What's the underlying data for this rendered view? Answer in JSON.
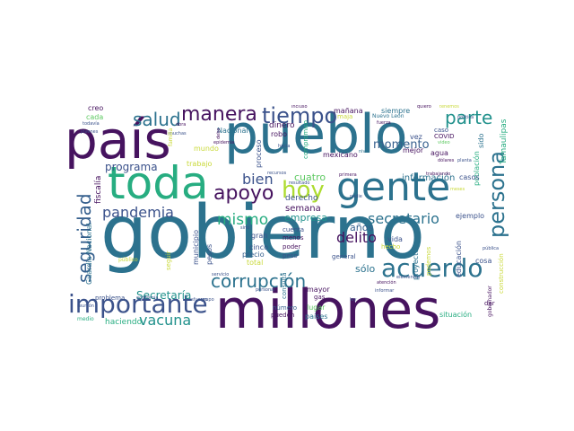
{
  "palette": {
    "background": "#ffffff",
    "dark_purple": "#46135f",
    "indigo": "#3b528b",
    "slate_blue": "#355f8d",
    "teal_blue": "#2c728e",
    "teal": "#21918c",
    "green": "#27ad81",
    "light_green": "#5ec962",
    "yellow_green": "#addc30",
    "yellow": "#c9d93a"
  },
  "words": [
    {
      "t": "gobierno",
      "c": "#2c728e"
    },
    {
      "t": "millones",
      "c": "#46135f"
    },
    {
      "t": "pueblo",
      "c": "#2c728e"
    },
    {
      "t": "país",
      "c": "#46135f"
    },
    {
      "t": "toda",
      "c": "#27ad81"
    },
    {
      "t": "gente",
      "c": "#2c728e"
    },
    {
      "t": "hoy",
      "c": "#addc30"
    },
    {
      "t": "apoyo",
      "c": "#46135f"
    },
    {
      "t": "acuerdo",
      "c": "#2c728e"
    },
    {
      "t": "importante",
      "c": "#3b528b"
    },
    {
      "t": "corrupción",
      "c": "#2c728e"
    },
    {
      "t": "tiempo",
      "c": "#3b528b"
    },
    {
      "t": "manera",
      "c": "#46135f"
    },
    {
      "t": "salud",
      "c": "#2c728e"
    },
    {
      "t": "parte",
      "c": "#21918c"
    },
    {
      "t": "persona",
      "c": "#2c728e"
    },
    {
      "t": "seguridad",
      "c": "#355f8d"
    },
    {
      "t": "pandemia",
      "c": "#3b528b"
    },
    {
      "t": "vacuna",
      "c": "#21918c"
    },
    {
      "t": "secretario",
      "c": "#2c728e"
    },
    {
      "t": "mismo",
      "c": "#27ad81"
    },
    {
      "t": "bien",
      "c": "#3b528b"
    },
    {
      "t": "delito",
      "c": "#46135f"
    },
    {
      "t": "momento",
      "c": "#355f8d"
    },
    {
      "t": "información",
      "c": "#2c728e"
    },
    {
      "t": "programa",
      "c": "#3b528b"
    },
    {
      "t": "empresa",
      "c": "#21918c"
    },
    {
      "t": "semana",
      "c": "#46135f"
    },
    {
      "t": "años",
      "c": "#355f8d"
    },
    {
      "t": "sólo",
      "c": "#2c728e"
    },
    {
      "t": "Secretaría",
      "c": "#21918c"
    },
    {
      "t": "haciendo",
      "c": "#27ad81"
    },
    {
      "t": "población",
      "c": "#27ad81"
    },
    {
      "t": "cuatro",
      "c": "#5ec962"
    },
    {
      "t": "derecho",
      "c": "#3b528b"
    },
    {
      "t": "mexicano",
      "c": "#46135f"
    },
    {
      "t": "mundo",
      "c": "#c9d93a"
    },
    {
      "t": "trabajo",
      "c": "#c9d93a"
    },
    {
      "t": "Tamaulipas",
      "c": "#27ad81"
    },
    {
      "t": "fiscalía",
      "c": "#46135f"
    },
    {
      "t": "Guardia Nacional",
      "c": "#2c728e"
    },
    {
      "t": "Nacional",
      "c": "#2c728e"
    },
    {
      "t": "municipio",
      "c": "#3b528b"
    },
    {
      "t": "gran",
      "c": "#3b528b"
    },
    {
      "t": "cinco",
      "c": "#3b528b"
    },
    {
      "t": "menos",
      "c": "#46135f"
    },
    {
      "t": "poder",
      "c": "#46135f"
    },
    {
      "t": "precio",
      "c": "#355f8d"
    },
    {
      "t": "total",
      "c": "#c9d93a"
    },
    {
      "t": "peso",
      "c": "#3b528b"
    },
    {
      "t": "pesos",
      "c": "#3b528b"
    },
    {
      "t": "cuenta",
      "c": "#3b528b"
    },
    {
      "t": "general",
      "c": "#3b528b"
    },
    {
      "t": "mayor",
      "c": "#46135f"
    },
    {
      "t": "gas",
      "c": "#46135f"
    },
    {
      "t": "número",
      "c": "#355f8d"
    },
    {
      "t": "pueden",
      "c": "#46135f"
    },
    {
      "t": "lugar",
      "c": "#5ec962"
    },
    {
      "t": "países",
      "c": "#2c728e"
    },
    {
      "t": "situación",
      "c": "#27ad81"
    },
    {
      "t": "proyecto",
      "c": "#2c728e"
    },
    {
      "t": "podemos",
      "c": "#c9d93a"
    },
    {
      "t": "educación",
      "c": "#3b528b"
    },
    {
      "t": "cosa",
      "c": "#3b528b"
    },
    {
      "t": "vida",
      "c": "#3b528b"
    },
    {
      "t": "hecho",
      "c": "#c9d93a"
    },
    {
      "t": "ejemplo",
      "c": "#3b528b"
    },
    {
      "t": "casos",
      "c": "#3b528b"
    },
    {
      "t": "vez",
      "c": "#3b528b"
    },
    {
      "t": "COVID",
      "c": "#46135f"
    },
    {
      "t": "agua",
      "c": "#46135f"
    },
    {
      "t": "mejor",
      "c": "#46135f"
    },
    {
      "t": "caso",
      "c": "#3b528b"
    },
    {
      "t": "sido",
      "c": "#2c728e"
    },
    {
      "t": "siempre",
      "c": "#2c728e"
    },
    {
      "t": "mañana",
      "c": "#46135f"
    },
    {
      "t": "Nuevo León",
      "c": "#2c728e"
    },
    {
      "t": "dinero",
      "c": "#46135f"
    },
    {
      "t": "robo",
      "c": "#46135f"
    },
    {
      "t": "proceso",
      "c": "#3b528b"
    },
    {
      "t": "compromiso",
      "c": "#27ad81"
    },
    {
      "t": "creo",
      "c": "#46135f"
    },
    {
      "t": "cada",
      "c": "#5ec962"
    },
    {
      "t": "todavía",
      "c": "#3b528b"
    },
    {
      "t": "incluso",
      "c": "#46135f"
    },
    {
      "t": "quiero",
      "c": "#46135f"
    },
    {
      "t": "tenemos",
      "c": "#c9d93a"
    },
    {
      "t": "política",
      "c": "#3b528b"
    },
    {
      "t": "fuerza",
      "c": "#46135f"
    },
    {
      "t": "dólares",
      "c": "#46135f"
    },
    {
      "t": "nivel",
      "c": "#2c728e"
    },
    {
      "t": "recursos",
      "c": "#3b528b"
    },
    {
      "t": "primera",
      "c": "#46135f"
    },
    {
      "t": "resultado",
      "c": "#3b528b"
    },
    {
      "t": "planta",
      "c": "#3b528b"
    },
    {
      "t": "meses",
      "c": "#c9d93a"
    },
    {
      "t": "medio",
      "c": "#27ad81"
    },
    {
      "t": "problema",
      "c": "#3b528b"
    },
    {
      "t": "público",
      "c": "#c9d93a"
    },
    {
      "t": "pública",
      "c": "#3b528b"
    },
    {
      "t": "construcción",
      "c": "#c9d93a"
    },
    {
      "t": "gobernador",
      "c": "#46135f"
    },
    {
      "t": "dar",
      "c": "#46135f"
    },
    {
      "t": "consulta",
      "c": "#2c728e"
    },
    {
      "t": "atención",
      "c": "#46135f"
    },
    {
      "t": "personal",
      "c": "#3b528b"
    },
    {
      "t": "servicio",
      "c": "#3b528b"
    },
    {
      "t": "esfuerzo",
      "c": "#3b528b"
    },
    {
      "t": "informar",
      "c": "#3b528b"
    },
    {
      "t": "elementos",
      "c": "#3b528b"
    },
    {
      "t": "epidemia",
      "c": "#46135f"
    },
    {
      "t": "economía",
      "c": "#3b528b"
    },
    {
      "t": "muchas",
      "c": "#3b528b"
    },
    {
      "t": "obra",
      "c": "#46135f"
    },
    {
      "t": "jóvenes",
      "c": "#3b528b"
    },
    {
      "t": "seguir",
      "c": "#c9d93a"
    },
    {
      "t": "hacia",
      "c": "#3b528b"
    },
    {
      "t": "nadie",
      "c": "#3b528b"
    },
    {
      "t": "video",
      "c": "#5ec962"
    },
    {
      "t": "maja",
      "c": "#c9d93a"
    },
    {
      "t": "ley",
      "c": "#3b528b"
    },
    {
      "t": "reunión",
      "c": "#3b528b"
    },
    {
      "t": "trabajando",
      "c": "#46135f"
    },
    {
      "t": "debe",
      "c": "#46135f"
    },
    {
      "t": "grupo",
      "c": "#3b528b"
    },
    {
      "t": "sino",
      "c": "#3b528b"
    },
    {
      "t": "familia",
      "c": "#c9d93a"
    }
  ]
}
